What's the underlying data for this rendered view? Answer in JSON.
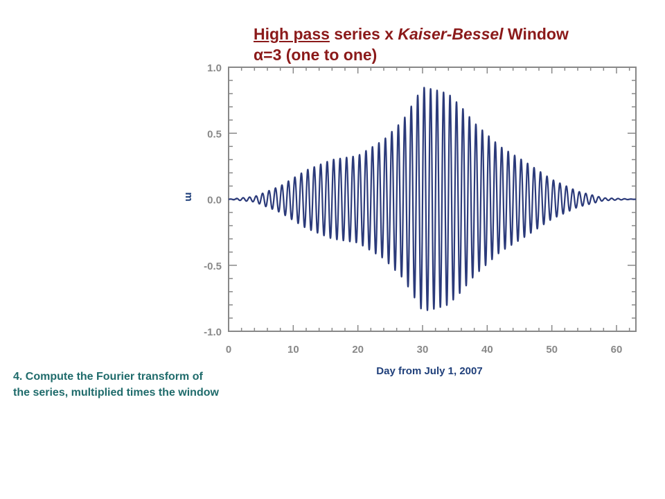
{
  "title": {
    "part1": "High pass",
    "part2": " series x ",
    "part3": "Kaiser-Bessel",
    "part4": " Window",
    "line2": "α=3 (one to one)"
  },
  "step_text": "4. Compute the Fourier transform of the series, multiplied times the window",
  "colors": {
    "title": "#8b1a1a",
    "series": "#2b3a7a",
    "axis_text": "#1f3f7a",
    "step_text": "#1f6b6b",
    "frame": "#888888"
  },
  "chart_data": {
    "type": "line",
    "title": "High pass series x Kaiser-Bessel Window α=3 (one to one)",
    "xlabel": "Day from July 1, 2007",
    "ylabel": "m",
    "xlim": [
      0,
      63
    ],
    "ylim": [
      -1.0,
      1.0
    ],
    "xticks": [
      0,
      10,
      20,
      30,
      40,
      50,
      60
    ],
    "xtick_labels": [
      "0",
      "10",
      "20",
      "30",
      "40",
      "50",
      "60"
    ],
    "yticks": [
      1.0,
      0.5,
      0.0,
      -0.5,
      -1.0
    ],
    "ytick_labels": [
      "1.0",
      "0.5",
      "0.0",
      "-0.5",
      "-1.0"
    ],
    "grid": false,
    "series": [
      {
        "description": "windowed oscillation, period ~1 day",
        "period_days": 1.0,
        "envelope": {
          "x": [
            0,
            4,
            8,
            12,
            16,
            20,
            24,
            27,
            30,
            32,
            34,
            36,
            38,
            42,
            46,
            50,
            54,
            58,
            63
          ],
          "y": [
            0.0,
            0.02,
            0.1,
            0.22,
            0.3,
            0.33,
            0.45,
            0.6,
            0.85,
            0.83,
            0.8,
            0.7,
            0.58,
            0.4,
            0.28,
            0.15,
            0.06,
            0.01,
            0.0
          ]
        }
      }
    ]
  }
}
